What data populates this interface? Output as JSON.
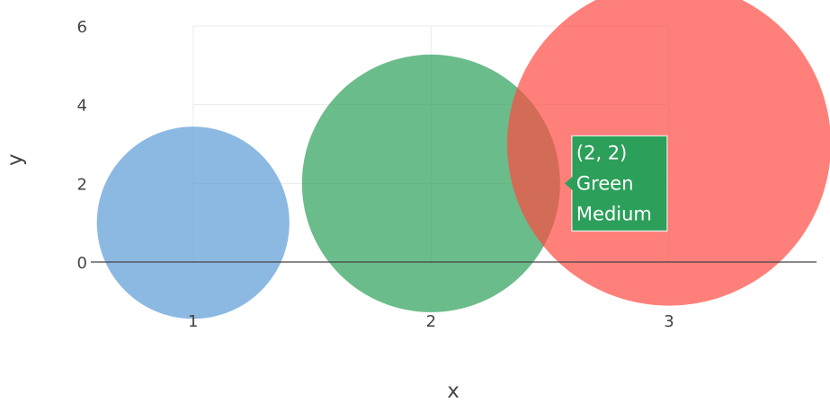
{
  "chart_data": {
    "type": "scatter",
    "xlabel": "x",
    "ylabel": "y",
    "xlim": [
      0.57,
      3.62
    ],
    "ylim": [
      -0.98,
      6
    ],
    "x_ticks": [
      1,
      2,
      3
    ],
    "y_ticks": [
      0,
      2,
      4,
      6
    ],
    "grid": true,
    "points": [
      {
        "x": 1,
        "y": 1,
        "size": 22,
        "color": "#5b9bd5"
      },
      {
        "x": 2,
        "y": 2,
        "size": 29.5,
        "color": "#2ca05a"
      },
      {
        "x": 3,
        "y": 3,
        "size": 37,
        "color": "#ff4a42"
      }
    ],
    "hover": {
      "point_index": 1,
      "lines": [
        "(2, 2)",
        "Green",
        "Medium"
      ],
      "color": "#2ca05a"
    }
  }
}
